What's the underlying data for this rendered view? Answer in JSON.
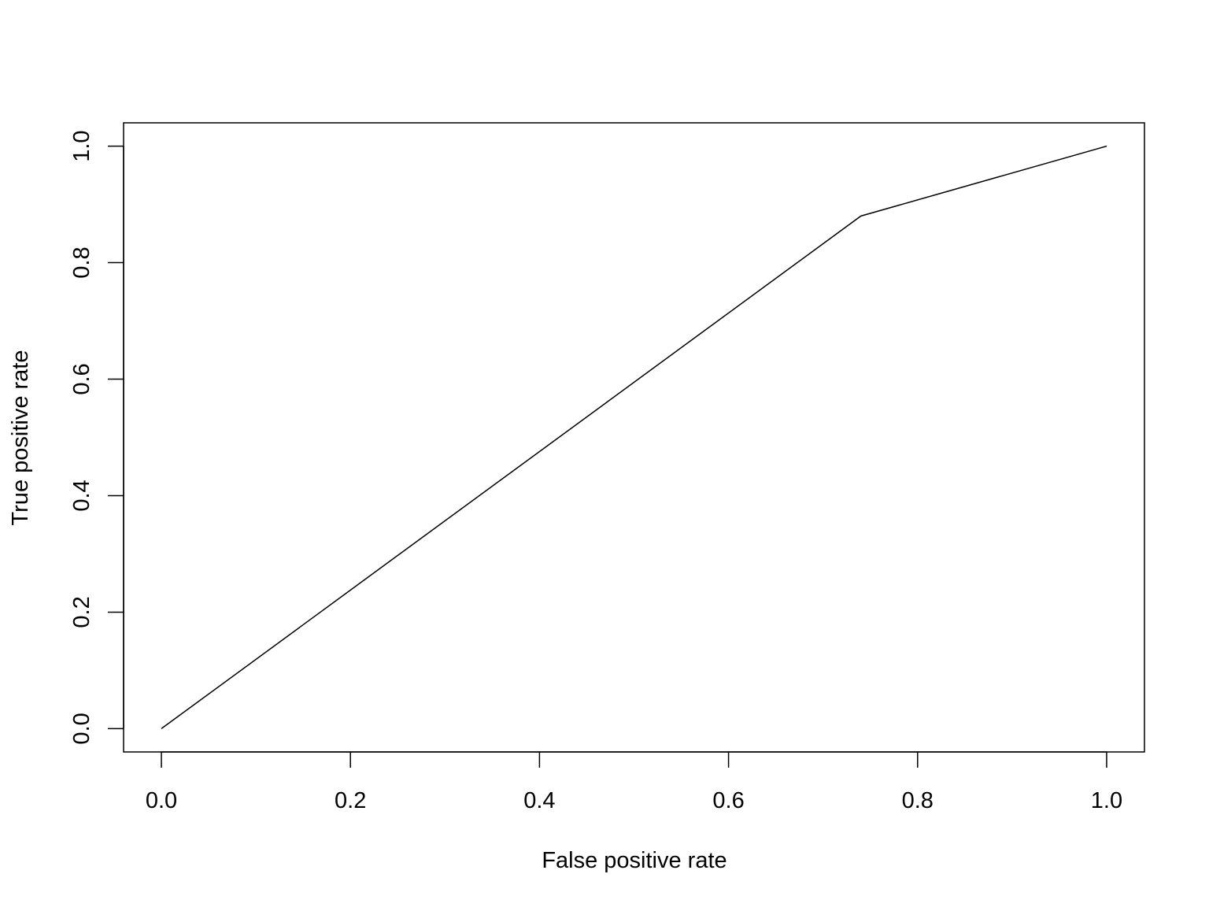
{
  "chart_data": {
    "type": "line",
    "xlabel": "False positive rate",
    "ylabel": "True positive rate",
    "x": [
      0,
      0.74,
      1
    ],
    "values": [
      0,
      0.88,
      1
    ],
    "color": "#000000",
    "xlim": [
      -0.04,
      1.04
    ],
    "ylim": [
      -0.04,
      1.04
    ],
    "xticks": [
      {
        "value": 0,
        "label": "0.0"
      },
      0.2,
      0.4,
      0.6,
      0.8,
      {
        "value": 1,
        "label": "1.0"
      }
    ],
    "yticks": [
      {
        "value": 0,
        "label": "0.0"
      },
      0.2,
      0.4,
      0.6,
      0.8,
      {
        "value": 1,
        "label": "1.0"
      }
    ]
  }
}
